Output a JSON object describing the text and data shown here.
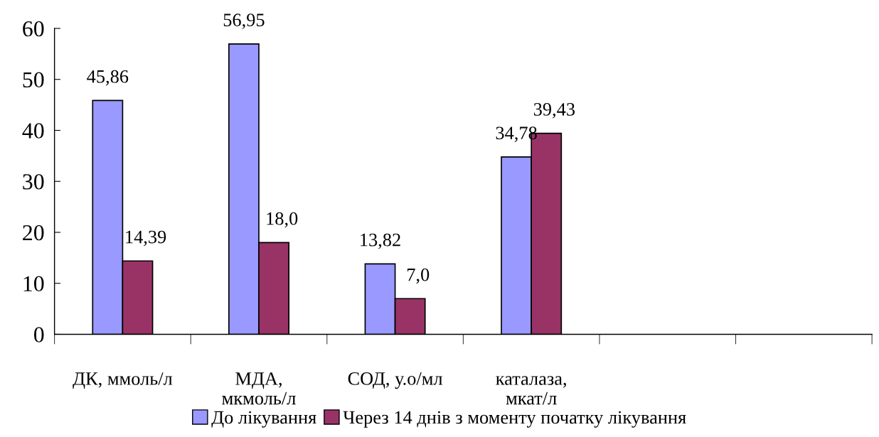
{
  "chart_data": {
    "type": "bar",
    "categories": [
      "ДК, ммоль/л",
      "МДА,\nмкмоль/л",
      "СОД, у.о/мл",
      "каталаза,\nмкат/л",
      null,
      null
    ],
    "series": [
      {
        "name": "До лікування",
        "color": "#9999ff",
        "values": [
          45.86,
          56.95,
          13.82,
          34.78,
          null,
          null
        ],
        "value_labels": [
          "45,86",
          "56,95",
          "13,82",
          "34,78",
          null,
          null
        ]
      },
      {
        "name": "Через 14 днів з моменту початку лікування",
        "color": "#993366",
        "values": [
          14.39,
          18.0,
          7.0,
          39.43,
          null,
          null
        ],
        "value_labels": [
          "14,39",
          "18,0",
          "7,0",
          "39,43",
          null,
          null
        ]
      }
    ],
    "ylim": [
      0,
      60
    ],
    "yticks": [
      0,
      10,
      20,
      30,
      40,
      50,
      60
    ],
    "grid": false,
    "legend": "bottom"
  }
}
